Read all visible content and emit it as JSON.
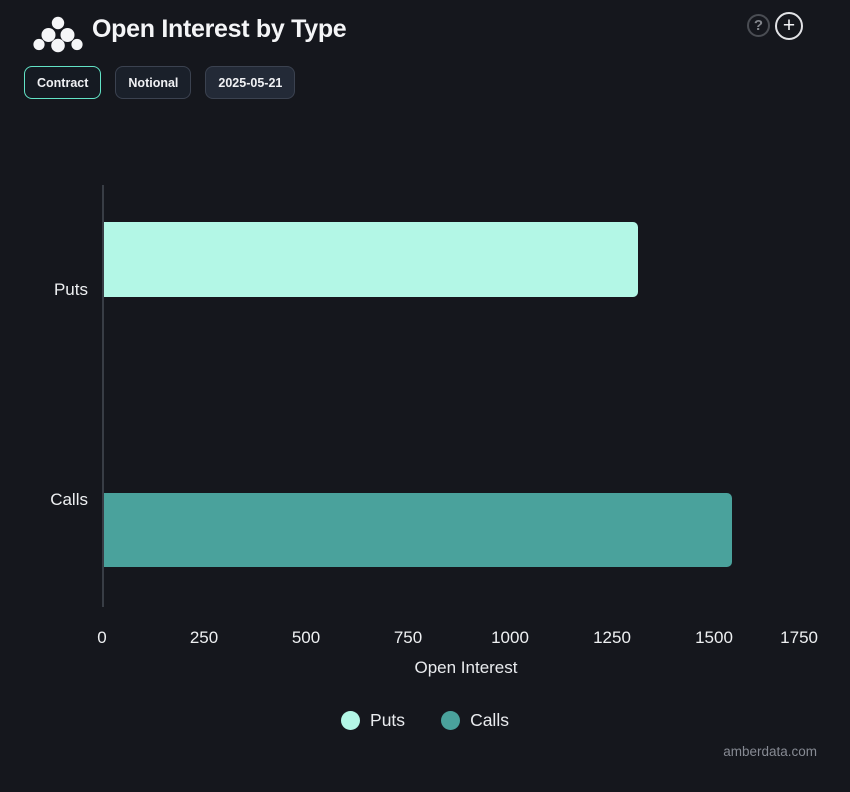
{
  "header": {
    "title": "Open Interest by Type",
    "help_label": "?",
    "add_label": "+"
  },
  "toolbar": {
    "buttons": [
      {
        "label": "Contract",
        "active": true
      },
      {
        "label": "Notional",
        "active": false
      },
      {
        "label": "2025-05-21",
        "active": false
      }
    ],
    "accent_color": "#62e3c6"
  },
  "chart_data": {
    "type": "bar",
    "orientation": "horizontal",
    "categories": [
      "Puts",
      "Calls"
    ],
    "series": [
      {
        "name": "Puts",
        "value": 1310,
        "color": "#b3f7e6"
      },
      {
        "name": "Calls",
        "value": 1540,
        "color": "#4aa29c"
      }
    ],
    "xlabel": "Open Interest",
    "xlim": [
      0,
      1750
    ],
    "xticks": [
      0,
      250,
      500,
      750,
      1000,
      1250,
      1500,
      1750
    ],
    "grid": false,
    "legend": [
      {
        "label": "Puts",
        "color": "#b3f7e6"
      },
      {
        "label": "Calls",
        "color": "#4aa29c"
      }
    ],
    "legend_position": "bottom"
  },
  "footer": {
    "watermark": "amberdata.com"
  }
}
